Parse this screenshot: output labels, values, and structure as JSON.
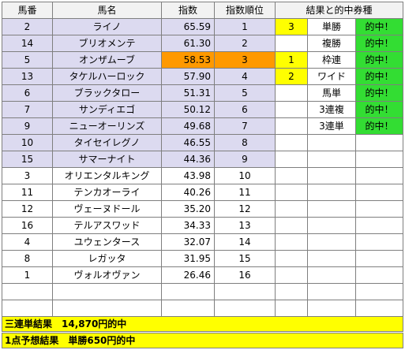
{
  "headers": {
    "umaban": "馬番",
    "name": "馬名",
    "index": "指数",
    "rank": "指数順位",
    "result": "結果と的中券種"
  },
  "rows": [
    {
      "umaban": "2",
      "name": "ライノ",
      "index": "65.59",
      "rank": "1"
    },
    {
      "umaban": "14",
      "name": "ブリオメンテ",
      "index": "61.30",
      "rank": "2"
    },
    {
      "umaban": "5",
      "name": "オンザムーブ",
      "index": "58.53",
      "rank": "3"
    },
    {
      "umaban": "13",
      "name": "タケルハーロック",
      "index": "57.90",
      "rank": "4"
    },
    {
      "umaban": "6",
      "name": "ブラックタロー",
      "index": "51.31",
      "rank": "5"
    },
    {
      "umaban": "7",
      "name": "サンディエゴ",
      "index": "50.12",
      "rank": "6"
    },
    {
      "umaban": "9",
      "name": "ニューオーリンズ",
      "index": "49.68",
      "rank": "7"
    },
    {
      "umaban": "10",
      "name": "タイセイレグノ",
      "index": "46.55",
      "rank": "8"
    },
    {
      "umaban": "15",
      "name": "サマーナイト",
      "index": "44.36",
      "rank": "9"
    },
    {
      "umaban": "3",
      "name": "オリエンタルキング",
      "index": "43.98",
      "rank": "10"
    },
    {
      "umaban": "11",
      "name": "テンカオーライ",
      "index": "40.26",
      "rank": "11"
    },
    {
      "umaban": "12",
      "name": "ヴェーヌドール",
      "index": "35.20",
      "rank": "12"
    },
    {
      "umaban": "16",
      "name": "テルアスワッド",
      "index": "34.33",
      "rank": "13"
    },
    {
      "umaban": "4",
      "name": "ユウェンタース",
      "index": "32.07",
      "rank": "14"
    },
    {
      "umaban": "8",
      "name": "レガッタ",
      "index": "31.95",
      "rank": "15"
    },
    {
      "umaban": "1",
      "name": "ヴォルオヴァン",
      "index": "26.46",
      "rank": "16"
    }
  ],
  "results": [
    {
      "place": "3",
      "ticket": "単勝",
      "hit": "的中！"
    },
    {
      "place": "",
      "ticket": "複勝",
      "hit": "的中！"
    },
    {
      "place": "1",
      "ticket": "枠連",
      "hit": "的中！"
    },
    {
      "place": "2",
      "ticket": "ワイド",
      "hit": "的中！"
    },
    {
      "place": "",
      "ticket": "馬単",
      "hit": "的中！"
    },
    {
      "place": "",
      "ticket": "3連複",
      "hit": "的中！"
    },
    {
      "place": "",
      "ticket": "3連単",
      "hit": "的中！"
    }
  ],
  "footer": {
    "line1": "三連単結果　14,870円的中",
    "line2": "1点予想結果　単勝650円的中"
  },
  "colors": {
    "highlight_rows": "#dcdaf0",
    "highlight_horse": "#ff9900",
    "place_cell": "#ffff00",
    "hit_cell": "#33dd33",
    "footer_bg": "#ffff00"
  }
}
